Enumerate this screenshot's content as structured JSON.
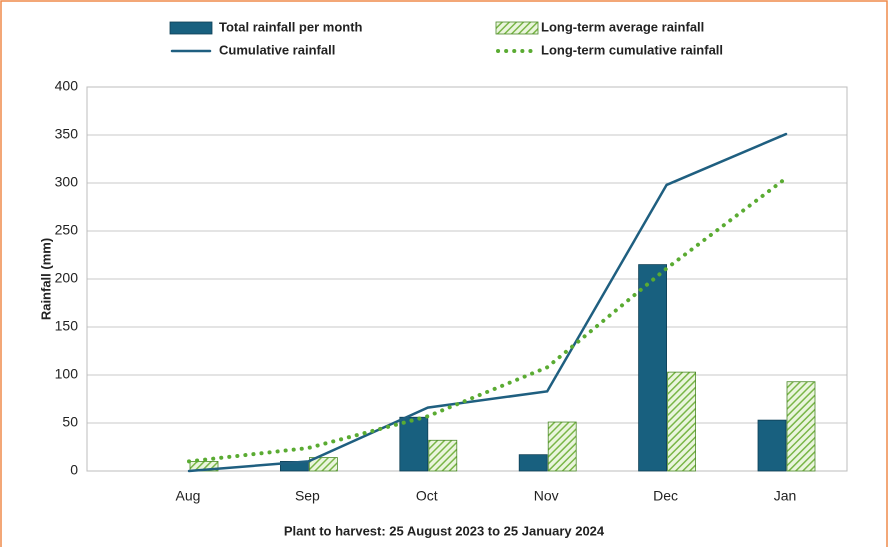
{
  "chart_data": {
    "type": "combo",
    "categories": [
      "Aug",
      "Sep",
      "Oct",
      "Nov",
      "Dec",
      "Jan"
    ],
    "series": [
      {
        "name": "Total rainfall per month",
        "type": "bar",
        "color": "#18607f",
        "values": [
          0,
          10,
          56,
          17,
          215,
          53
        ]
      },
      {
        "name": "Long-term average rainfall",
        "type": "bar",
        "color": "#7ab648",
        "hatched": true,
        "values": [
          10,
          14,
          32,
          51,
          103,
          93
        ]
      },
      {
        "name": "Cumulative rainfall",
        "type": "line",
        "color": "#1f5f80",
        "values": [
          0,
          10,
          66,
          83,
          298,
          351
        ]
      },
      {
        "name": "Long-term cumulative rainfall",
        "type": "line",
        "color": "#5aab32",
        "dotted": true,
        "values": [
          10,
          24,
          57,
          108,
          211,
          305
        ]
      }
    ],
    "ylabel": "Rainfall (mm)",
    "xlabel": "Plant to harvest: 25 August 2023 to 25 January 2024",
    "ylim": [
      0,
      400
    ],
    "yticks": [
      0,
      50,
      100,
      150,
      200,
      250,
      300,
      350,
      400
    ],
    "grid": true,
    "legend": "top"
  }
}
